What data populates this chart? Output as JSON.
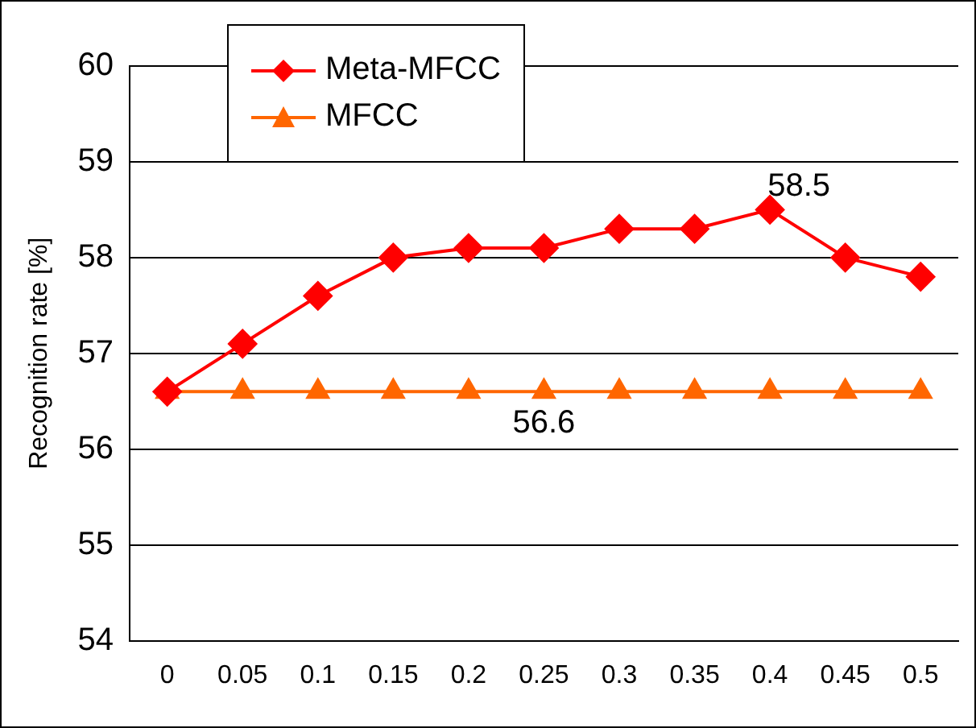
{
  "chart_data": {
    "type": "line",
    "ylabel": "Recognition rate [%]",
    "categories": [
      "0",
      "0.05",
      "0.1",
      "0.15",
      "0.2",
      "0.25",
      "0.3",
      "0.35",
      "0.4",
      "0.45",
      "0.5"
    ],
    "series": [
      {
        "name": "Meta-MFCC",
        "color": "#ff0000",
        "marker": "diamond",
        "values": [
          56.6,
          57.1,
          57.6,
          58.0,
          58.1,
          58.1,
          58.3,
          58.3,
          58.5,
          58.0,
          57.8
        ]
      },
      {
        "name": "MFCC",
        "color": "#ff6600",
        "marker": "triangle",
        "values": [
          56.6,
          56.6,
          56.6,
          56.6,
          56.6,
          56.6,
          56.6,
          56.6,
          56.6,
          56.6,
          56.6
        ]
      }
    ],
    "ylim": [
      54,
      60
    ],
    "yticks": [
      54,
      55,
      56,
      57,
      58,
      59,
      60
    ],
    "grid": "y",
    "legend": "top left",
    "annotations": [
      {
        "text": "58.5",
        "x": "0.4",
        "y": 58.5
      },
      {
        "text": "56.6",
        "x": "0.25",
        "y": 56.6
      }
    ]
  }
}
